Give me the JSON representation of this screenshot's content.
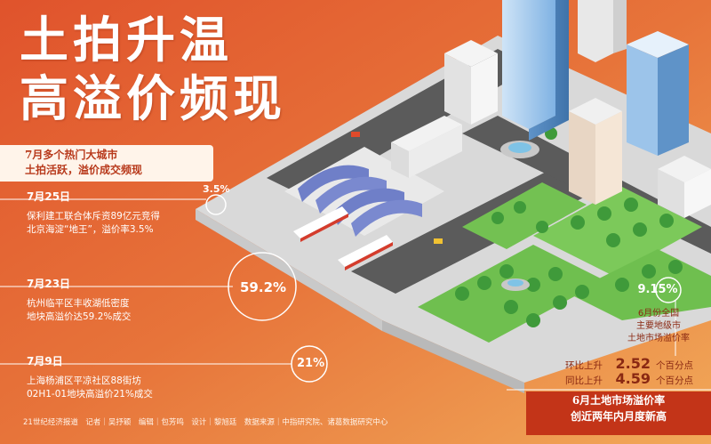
{
  "title": {
    "line1": "土拍升温",
    "line2": "高溢价频现"
  },
  "intro": {
    "line1": "7月多个热门大城市",
    "line2": "土拍活跃，溢价成交频现"
  },
  "events": [
    {
      "date": "7月25日",
      "line1": "保利建工联合体斥资89亿元竞得",
      "line2": "北京海淀“地王”，溢价率3.5%",
      "premium": "3.5%"
    },
    {
      "date": "7月23日",
      "line1": "杭州临平区丰收湖低密度",
      "line2": "地块高溢价达59.2%成交",
      "premium": "59.2%"
    },
    {
      "date": "7月9日",
      "line1": "上海杨浦区平凉社区88街坊",
      "line2": "02H1-01地块高溢价21%成交",
      "premium": "21%"
    }
  ],
  "national": {
    "rate": "9.15%",
    "desc_line1": "6月份全国",
    "desc_line2": "主要地级市",
    "desc_line3": "土地市场溢价率",
    "mom_label": "环比上升",
    "mom_value": "2.52",
    "mom_unit": "个百分点",
    "yoy_label": "同比上升",
    "yoy_value": "4.59",
    "yoy_unit": "个百分点"
  },
  "highlight": {
    "line1": "6月土地市场溢价率",
    "line2": "创近两年内月度新高"
  },
  "credits": "21世纪经济报道　记者｜吴抒颖　编辑｜包芳鸣　设计｜黎旭廷　数据来源｜中指研究院、诸葛数据研究中心",
  "colors": {
    "background": "#e76f35",
    "accent_dark": "#c33418",
    "intro_text": "#b83a1c",
    "stat_text": "#8a2812"
  }
}
